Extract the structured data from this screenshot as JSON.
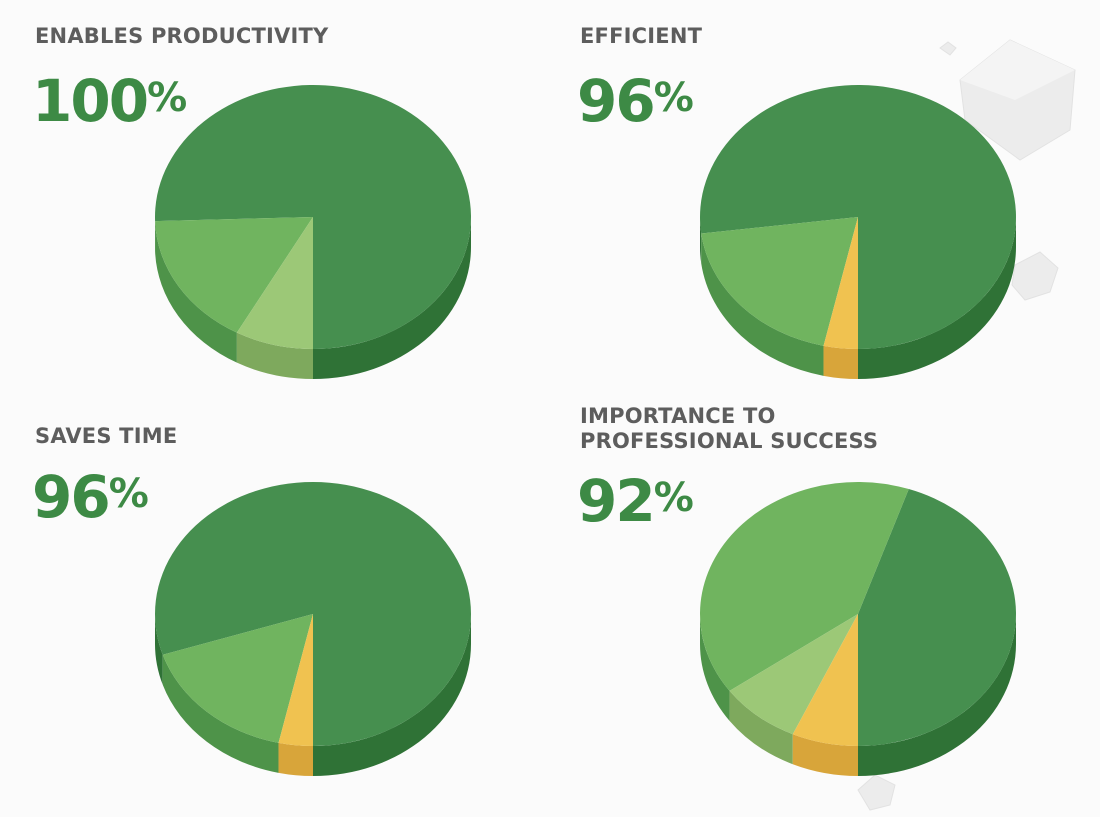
{
  "colors": {
    "dark_green": "#468f4f",
    "dark_green_side": "#2f7236",
    "mid_green": "#70b45f",
    "mid_green_side": "#4e9349",
    "light_green": "#9cc877",
    "light_green_side": "#7ea95d",
    "yellow": "#f0c250",
    "yellow_side": "#d8a53a",
    "title_gray": "#5d5d5d",
    "percent_green": "#3d8a45"
  },
  "chart_data": [
    {
      "type": "pie",
      "title": "ENABLES PRODUCTIVITY",
      "headline_value": "100",
      "headline_unit": "%",
      "slices": [
        {
          "label": "dark green",
          "value": 75.5,
          "color": "dark_green"
        },
        {
          "label": "mid green",
          "value": 16.5,
          "color": "mid_green"
        },
        {
          "label": "light green",
          "value": 8.0,
          "color": "light_green"
        }
      ]
    },
    {
      "type": "pie",
      "title": "EFFICIENT",
      "headline_value": "96",
      "headline_unit": "%",
      "slices": [
        {
          "label": "dark green",
          "value": 77.0,
          "color": "dark_green"
        },
        {
          "label": "mid green",
          "value": 19.5,
          "color": "mid_green"
        },
        {
          "label": "yellow",
          "value": 3.5,
          "color": "yellow"
        }
      ]
    },
    {
      "type": "pie",
      "title": "SAVES TIME",
      "headline_value": "96",
      "headline_unit": "%",
      "slices": [
        {
          "label": "dark green",
          "value": 80.0,
          "color": "dark_green"
        },
        {
          "label": "mid green",
          "value": 16.5,
          "color": "mid_green"
        },
        {
          "label": "yellow",
          "value": 3.5,
          "color": "yellow"
        }
      ]
    },
    {
      "type": "pie",
      "title": [
        "IMPORTANCE TO",
        "PROFESSIONAL SUCCESS"
      ],
      "headline_value": "92",
      "headline_unit": "%",
      "slices": [
        {
          "label": "dark green",
          "value": 43.0,
          "color": "dark_green"
        },
        {
          "label": "mid green",
          "value": 38.5,
          "color": "mid_green"
        },
        {
          "label": "light green",
          "value": 8.0,
          "color": "light_green"
        },
        {
          "label": "yellow",
          "value": 6.5,
          "color": "yellow"
        }
      ]
    }
  ]
}
